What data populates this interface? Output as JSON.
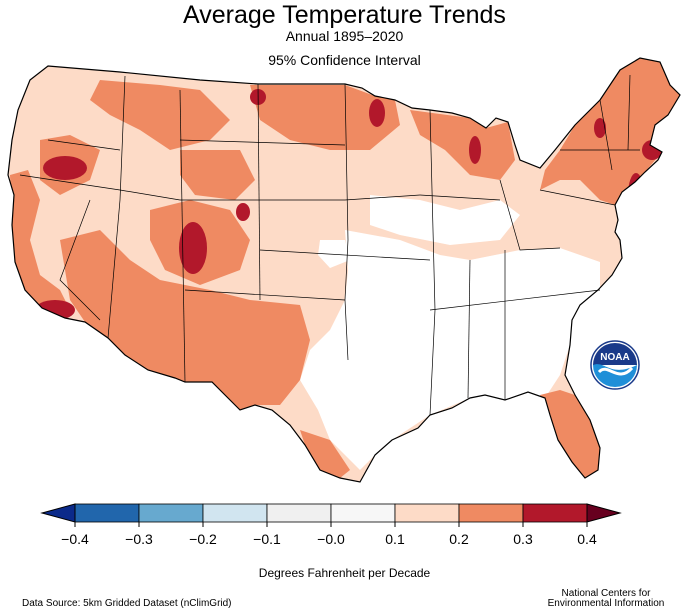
{
  "title": "Average Temperature Trends",
  "subtitle": "Annual 1895–2020",
  "subtitle2": "95% Confidence Interval",
  "colorbar": {
    "ticks": [
      "−0.4",
      "−0.3",
      "−0.2",
      "−0.1",
      "−0.0",
      "0.1",
      "0.2",
      "0.3",
      "0.4"
    ],
    "bins": [
      {
        "from": -0.4,
        "to": -0.3,
        "color": "#2166ac"
      },
      {
        "from": -0.3,
        "to": -0.2,
        "color": "#67a9cf"
      },
      {
        "from": -0.2,
        "to": -0.1,
        "color": "#d1e5f0"
      },
      {
        "from": -0.1,
        "to": 0.0,
        "color": "#f0f0f0"
      },
      {
        "from": 0.0,
        "to": 0.1,
        "color": "#f7f7f7"
      },
      {
        "from": 0.1,
        "to": 0.2,
        "color": "#fddbc7"
      },
      {
        "from": 0.2,
        "to": 0.3,
        "color": "#ef8a62"
      },
      {
        "from": 0.3,
        "to": 0.4,
        "color": "#b2182b"
      }
    ],
    "under_color": "#0b2a8a",
    "over_color": "#67001f",
    "units_label": "Degrees Fahrenheit per Decade"
  },
  "map": {
    "land_base_color": "#fddbc7",
    "no_trend_color": "#ffffff",
    "strong_color": "#ef8a62",
    "strongest_color": "#b2182b",
    "boundary_color": "#000000"
  },
  "source_text": "Data Source: 5km Gridded Dataset (nClimGrid)",
  "org_line1": "National Centers for",
  "org_line2": "Environmental Information",
  "logo": {
    "text": "NOAA",
    "icon": "noaa-logo-icon"
  }
}
